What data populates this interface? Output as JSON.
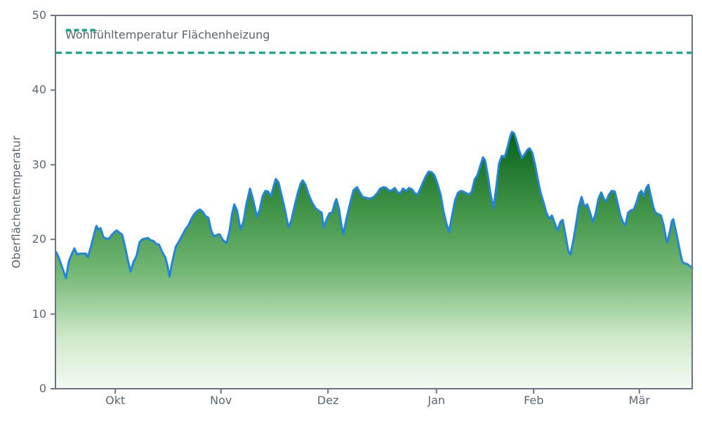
{
  "chart_data": {
    "type": "area",
    "title": "",
    "xlabel": "",
    "ylabel": "Oberflächentemperatur",
    "ylim": [
      0,
      50
    ],
    "xlim_days": [
      0,
      182
    ],
    "grid": false,
    "y_ticks": [
      0,
      10,
      20,
      30,
      40,
      50
    ],
    "x_ticks": [
      {
        "label": "Okt",
        "day": 17.1
      },
      {
        "label": "Nov",
        "day": 47.3
      },
      {
        "label": "Dez",
        "day": 77.9
      },
      {
        "label": "Jan",
        "day": 108.9
      },
      {
        "label": "Feb",
        "day": 136.7
      },
      {
        "label": "Mär",
        "day": 166.9
      }
    ],
    "reference_line": {
      "label": "Wohlfühltemperatur Flächenheizung",
      "value": 45,
      "style": "dashed",
      "color": "#12a384"
    },
    "legend": {
      "position": "upper-left"
    },
    "series": [
      {
        "name": "Oberflächentemperatur",
        "type": "area",
        "line_color": "#2485d8",
        "points": [
          [
            0.2,
            18.3
          ],
          [
            1,
            17.5
          ],
          [
            1.8,
            16.4
          ],
          [
            3,
            14.8
          ],
          [
            3.8,
            17
          ],
          [
            4.8,
            18.2
          ],
          [
            5.4,
            18.8
          ],
          [
            6.2,
            18
          ],
          [
            7,
            18.1
          ],
          [
            7.9,
            18.1
          ],
          [
            8.7,
            18.1
          ],
          [
            9.3,
            17.6
          ],
          [
            10.3,
            19.3
          ],
          [
            11.1,
            20.8
          ],
          [
            11.7,
            21.8
          ],
          [
            12.3,
            21.3
          ],
          [
            12.9,
            21.5
          ],
          [
            13.7,
            20.3
          ],
          [
            14.5,
            20.1
          ],
          [
            15.3,
            20.1
          ],
          [
            16.1,
            20.6
          ],
          [
            16.9,
            21
          ],
          [
            17.5,
            21.2
          ],
          [
            18.3,
            20.9
          ],
          [
            19.1,
            20.6
          ],
          [
            19.9,
            19
          ],
          [
            20.7,
            17.2
          ],
          [
            21.5,
            15.7
          ],
          [
            22.3,
            17
          ],
          [
            23.2,
            17.8
          ],
          [
            24,
            19.6
          ],
          [
            24.8,
            20
          ],
          [
            25.6,
            20.1
          ],
          [
            26.4,
            20.2
          ],
          [
            27.2,
            19.9
          ],
          [
            28,
            19.8
          ],
          [
            28.8,
            19.4
          ],
          [
            29.6,
            19.3
          ],
          [
            30.4,
            18.4
          ],
          [
            31.4,
            17.6
          ],
          [
            32,
            16.5
          ],
          [
            32.6,
            15
          ],
          [
            33.4,
            17
          ],
          [
            34.4,
            19
          ],
          [
            35.4,
            19.8
          ],
          [
            36.4,
            20.7
          ],
          [
            37.2,
            21.4
          ],
          [
            38,
            21.9
          ],
          [
            38.9,
            22.8
          ],
          [
            39.7,
            23.4
          ],
          [
            40.5,
            23.8
          ],
          [
            41.3,
            24
          ],
          [
            42.1,
            23.7
          ],
          [
            42.9,
            23.1
          ],
          [
            43.7,
            22.9
          ],
          [
            44.5,
            21.2
          ],
          [
            45.3,
            20.4
          ],
          [
            46.1,
            20.6
          ],
          [
            46.9,
            20.7
          ],
          [
            47.9,
            19.9
          ],
          [
            48.9,
            19.5
          ],
          [
            49.7,
            21
          ],
          [
            50.5,
            23.5
          ],
          [
            51.1,
            24.7
          ],
          [
            51.9,
            23.9
          ],
          [
            52.9,
            21.3
          ],
          [
            53.8,
            22.5
          ],
          [
            54.6,
            24.8
          ],
          [
            55.6,
            26.8
          ],
          [
            56.4,
            25.5
          ],
          [
            57.6,
            23
          ],
          [
            58.4,
            24
          ],
          [
            59.2,
            25.8
          ],
          [
            60,
            26.5
          ],
          [
            60.8,
            26.4
          ],
          [
            61.6,
            25.8
          ],
          [
            62.4,
            27.2
          ],
          [
            63,
            28.1
          ],
          [
            63.8,
            27.6
          ],
          [
            64.6,
            26
          ],
          [
            65.6,
            24
          ],
          [
            66.6,
            21.6
          ],
          [
            67.4,
            22.5
          ],
          [
            68.3,
            24.4
          ],
          [
            69.3,
            26.3
          ],
          [
            70.1,
            27.5
          ],
          [
            70.7,
            27.9
          ],
          [
            71.5,
            27.3
          ],
          [
            72.3,
            26.1
          ],
          [
            73.3,
            25
          ],
          [
            74.3,
            24.2
          ],
          [
            75.3,
            23.8
          ],
          [
            76.1,
            23.6
          ],
          [
            76.7,
            21.6
          ],
          [
            77.5,
            22.7
          ],
          [
            78.3,
            23.5
          ],
          [
            79.1,
            23.6
          ],
          [
            79.9,
            25
          ],
          [
            80.3,
            25.4
          ],
          [
            81.1,
            24
          ],
          [
            81.7,
            22
          ],
          [
            82.3,
            20.7
          ],
          [
            83.1,
            22.6
          ],
          [
            84.2,
            24.8
          ],
          [
            85.2,
            26.6
          ],
          [
            86.2,
            27
          ],
          [
            87,
            26.3
          ],
          [
            87.8,
            25.7
          ],
          [
            88.6,
            25.6
          ],
          [
            89.4,
            25.5
          ],
          [
            90.2,
            25.5
          ],
          [
            91,
            25.7
          ],
          [
            92,
            26.2
          ],
          [
            92.8,
            26.8
          ],
          [
            93.8,
            27
          ],
          [
            94.6,
            26.9
          ],
          [
            95.4,
            26.5
          ],
          [
            96.2,
            26.6
          ],
          [
            97,
            26.9
          ],
          [
            97.8,
            26.3
          ],
          [
            98.6,
            26.2
          ],
          [
            99.3,
            26.8
          ],
          [
            100.3,
            26.5
          ],
          [
            101.1,
            26.9
          ],
          [
            101.9,
            26.7
          ],
          [
            102.7,
            26.2
          ],
          [
            103.5,
            26
          ],
          [
            104.3,
            26.8
          ],
          [
            105.1,
            27.7
          ],
          [
            105.9,
            28.5
          ],
          [
            106.7,
            29.1
          ],
          [
            107.5,
            29
          ],
          [
            108.3,
            28.6
          ],
          [
            109.1,
            27.6
          ],
          [
            110.1,
            26
          ],
          [
            110.9,
            23.8
          ],
          [
            111.7,
            22.2
          ],
          [
            112.5,
            21
          ],
          [
            113.3,
            23
          ],
          [
            114.2,
            25.2
          ],
          [
            115,
            26.2
          ],
          [
            115.8,
            26.5
          ],
          [
            116.6,
            26.4
          ],
          [
            117.4,
            26.2
          ],
          [
            118.2,
            26
          ],
          [
            119,
            26.4
          ],
          [
            119.8,
            28
          ],
          [
            120.6,
            28.6
          ],
          [
            121.4,
            29.8
          ],
          [
            122.2,
            31
          ],
          [
            122.8,
            30.6
          ],
          [
            123.6,
            28.5
          ],
          [
            124.4,
            26
          ],
          [
            125.2,
            24.2
          ],
          [
            126,
            27
          ],
          [
            126.8,
            30.2
          ],
          [
            127.6,
            31.2
          ],
          [
            128.4,
            31
          ],
          [
            129.3,
            32.5
          ],
          [
            130.1,
            34
          ],
          [
            130.5,
            34.4
          ],
          [
            131.1,
            34.2
          ],
          [
            131.7,
            33.4
          ],
          [
            132.5,
            32
          ],
          [
            133.3,
            30.9
          ],
          [
            134.1,
            31.4
          ],
          [
            134.9,
            32
          ],
          [
            135.5,
            32.2
          ],
          [
            136.3,
            31.6
          ],
          [
            137.1,
            30
          ],
          [
            137.9,
            28
          ],
          [
            138.7,
            26.2
          ],
          [
            139.5,
            25
          ],
          [
            140.3,
            23.6
          ],
          [
            141.1,
            22.8
          ],
          [
            141.9,
            23.2
          ],
          [
            142.7,
            22.2
          ],
          [
            143.5,
            21.2
          ],
          [
            144.4,
            22.4
          ],
          [
            145,
            22.6
          ],
          [
            145.8,
            20.5
          ],
          [
            146.6,
            18.4
          ],
          [
            147.2,
            18
          ],
          [
            148,
            19.8
          ],
          [
            148.8,
            22
          ],
          [
            149.6,
            24.4
          ],
          [
            150.4,
            25.7
          ],
          [
            151.2,
            24.4
          ],
          [
            152,
            24.7
          ],
          [
            152.8,
            23.6
          ],
          [
            153.6,
            22.3
          ],
          [
            154.4,
            23.5
          ],
          [
            155.2,
            25.4
          ],
          [
            156,
            26.3
          ],
          [
            156.8,
            25.4
          ],
          [
            157.4,
            25.1
          ],
          [
            158.2,
            26
          ],
          [
            159,
            26.5
          ],
          [
            159.9,
            26.4
          ],
          [
            160.7,
            24.8
          ],
          [
            161.5,
            23.2
          ],
          [
            162.3,
            22.2
          ],
          [
            162.9,
            21.9
          ],
          [
            163.7,
            23.6
          ],
          [
            164.5,
            23.9
          ],
          [
            165.3,
            24
          ],
          [
            166.1,
            25
          ],
          [
            166.9,
            26.2
          ],
          [
            167.5,
            26.5
          ],
          [
            168.1,
            25.8
          ],
          [
            168.9,
            26.9
          ],
          [
            169.5,
            27.3
          ],
          [
            170.1,
            26
          ],
          [
            170.9,
            24.3
          ],
          [
            171.5,
            23.6
          ],
          [
            172.3,
            23.4
          ],
          [
            173.1,
            23.2
          ],
          [
            173.9,
            21.8
          ],
          [
            174.5,
            20.2
          ],
          [
            174.9,
            19.6
          ],
          [
            175.6,
            21
          ],
          [
            176.2,
            22.5
          ],
          [
            176.6,
            22.7
          ],
          [
            177.4,
            21
          ],
          [
            178,
            19.6
          ],
          [
            178.6,
            18.2
          ],
          [
            179.2,
            17
          ],
          [
            179.8,
            16.8
          ],
          [
            180.6,
            16.7
          ],
          [
            181.4,
            16.4
          ],
          [
            182,
            16.2
          ]
        ]
      }
    ]
  },
  "style": {
    "line_color": "#2485d8",
    "reference_color": "#12a384",
    "frame_color": "#6a7482",
    "text_color": "#5b6573",
    "gradient_stops": [
      "#07611a",
      "#3f9347",
      "#74b876",
      "#cfe9c9",
      "#f4faf2"
    ]
  }
}
